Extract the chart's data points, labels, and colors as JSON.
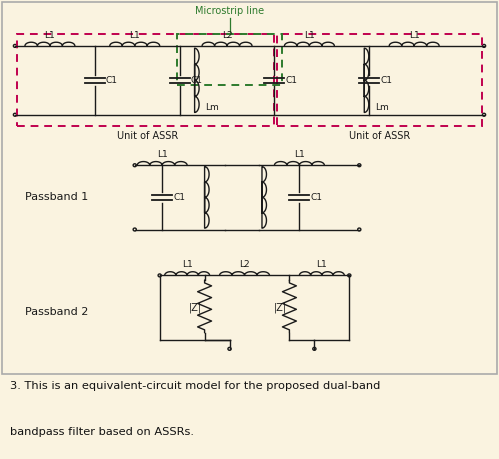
{
  "bg_color": "#faf3e0",
  "circuit_color": "#1a1a1a",
  "dashed_red": "#c0004e",
  "dashed_green": "#2d7a2d",
  "caption_bold": "3. ",
  "caption_text": "This is an equivalent-circuit model for the proposed dual-band\nbandpass filter based on ASSRs.",
  "microstrip_label": "Microstrip line",
  "unit_assr_label": "Unit of ASSR",
  "passband1_label": "Passband 1",
  "passband2_label": "Passband 2"
}
